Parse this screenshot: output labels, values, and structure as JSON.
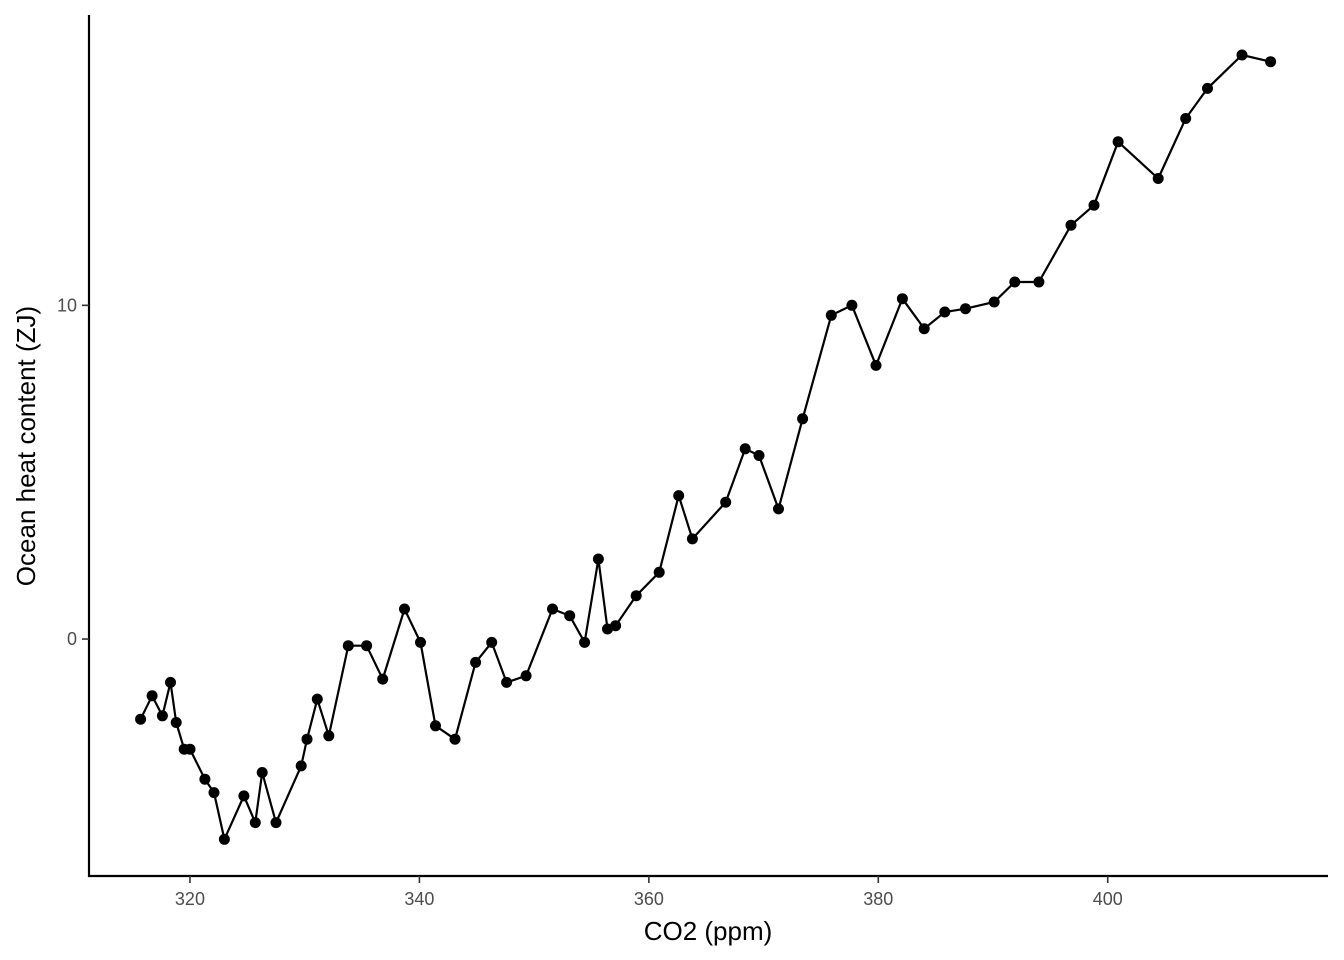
{
  "chart_data": {
    "type": "scatter",
    "xlabel": "CO2 (ppm)",
    "ylabel": "Ocean heat content (ZJ)",
    "xlim": [
      311.2,
      419.2
    ],
    "ylim": [
      -7.1,
      18.7
    ],
    "x_ticks": [
      320,
      340,
      360,
      380,
      400
    ],
    "y_ticks": [
      0,
      10
    ],
    "grid": false,
    "legend": "none",
    "connect_points": true,
    "colors": {
      "line": "#000000",
      "point": "#000000",
      "axis": "#000000",
      "tick_label": "#4d4d4d"
    },
    "series": [
      {
        "x": [
          315.7,
          316.7,
          317.6,
          318.3,
          318.8,
          319.5,
          320.0,
          321.3,
          322.1,
          323.0,
          324.7,
          325.7,
          326.3,
          327.5,
          329.7,
          330.2,
          331.1,
          332.1,
          333.8,
          335.4,
          336.8,
          338.7,
          340.1,
          341.4,
          343.1,
          344.9,
          346.3,
          347.6,
          349.3,
          351.6,
          353.1,
          354.4,
          355.6,
          356.4,
          357.1,
          358.9,
          360.9,
          362.6,
          363.8,
          366.7,
          368.4,
          369.6,
          371.3,
          373.4,
          375.9,
          377.7,
          379.8,
          382.1,
          384.0,
          385.8,
          387.6,
          390.1,
          391.9,
          394.0,
          396.8,
          398.8,
          400.9,
          404.4,
          406.8,
          408.7,
          411.7,
          414.2
        ],
        "y": [
          -2.4,
          -1.7,
          -2.3,
          -1.3,
          -2.5,
          -3.3,
          -3.3,
          -4.2,
          -4.6,
          -6.0,
          -4.7,
          -5.5,
          -4.0,
          -5.5,
          -3.8,
          -3.0,
          -1.8,
          -2.9,
          -0.2,
          -0.2,
          -1.2,
          0.9,
          -0.1,
          -2.6,
          -3.0,
          -0.7,
          -0.1,
          -1.3,
          -1.1,
          0.9,
          0.7,
          -0.1,
          2.4,
          0.3,
          0.4,
          1.3,
          2.0,
          4.3,
          3.0,
          4.1,
          5.7,
          5.5,
          3.9,
          6.6,
          9.7,
          10.0,
          8.2,
          10.2,
          9.3,
          9.8,
          9.9,
          10.1,
          10.7,
          10.7,
          12.4,
          13.0,
          14.9,
          13.8,
          15.6,
          16.5,
          17.5,
          17.3
        ]
      }
    ]
  }
}
